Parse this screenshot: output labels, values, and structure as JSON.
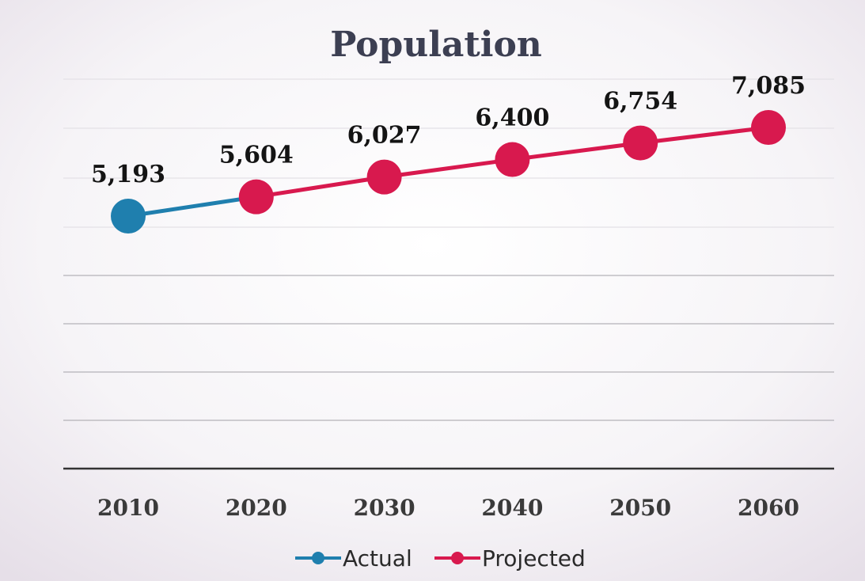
{
  "chart_data": {
    "type": "line",
    "title": "Population",
    "xlabel": "",
    "ylabel": "",
    "categories": [
      "2010",
      "2020",
      "2030",
      "2040",
      "2050",
      "2060"
    ],
    "ylim": [
      0,
      8000
    ],
    "grid": true,
    "legend_position": "bottom",
    "series": [
      {
        "name": "Actual",
        "color": "#1f7fae",
        "x": [
          "2010",
          "2020"
        ],
        "values": [
          5193,
          5604
        ]
      },
      {
        "name": "Projected",
        "color": "#d8194e",
        "x": [
          "2020",
          "2030",
          "2040",
          "2050",
          "2060"
        ],
        "values": [
          5604,
          6027,
          6400,
          6754,
          7085
        ]
      }
    ],
    "data_labels": [
      {
        "x": "2010",
        "text": "5,193"
      },
      {
        "x": "2020",
        "text": "5,604"
      },
      {
        "x": "2030",
        "text": "6,027"
      },
      {
        "x": "2040",
        "text": "6,400"
      },
      {
        "x": "2050",
        "text": "6,754"
      },
      {
        "x": "2060",
        "text": "7,085"
      }
    ]
  }
}
